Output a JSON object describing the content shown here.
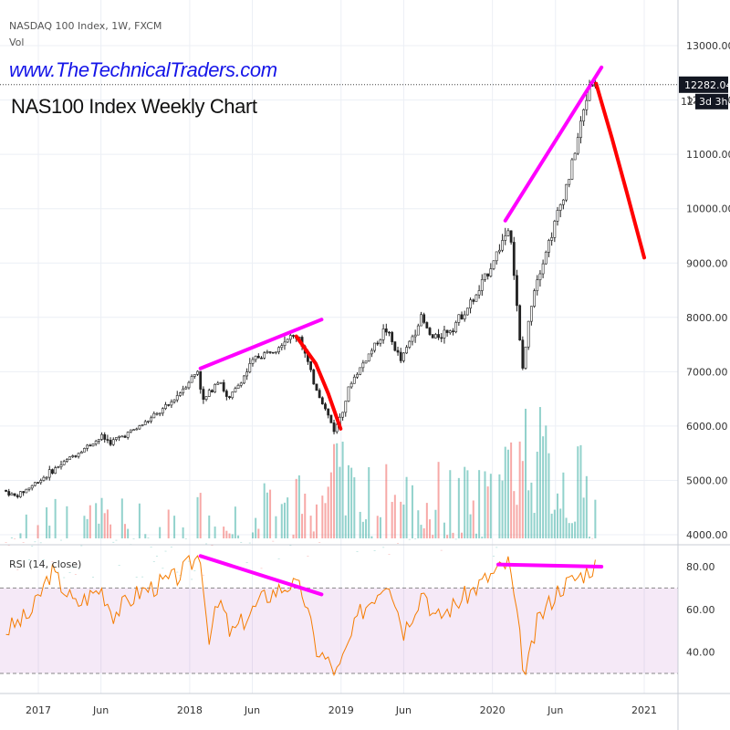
{
  "header": {
    "symbol_line": "NASDAQ 100 Index, 1W, FXCM",
    "vol_label": "Vol",
    "website": "www.TheTechnicalTraders.com",
    "subtitle": "NAS100 Index Weekly Chart",
    "rsi_label": "RSI (14, close)"
  },
  "price_badge": {
    "value": "12282.04",
    "countdown": "3d 3h",
    "hidden_partial": "12"
  },
  "colors": {
    "up": "#26a69a",
    "down": "#ef5350",
    "candle": "#222222",
    "trendline": "#ff00ff",
    "forecast": "#ff0000",
    "rsi_line": "#f57c00",
    "rsi_band": "#9c27b0"
  },
  "chart_data": [
    {
      "type": "candlestick",
      "title": "NAS100 Index Weekly Chart",
      "y_ticks": [
        "13000.00",
        "12000.00",
        "11000.00",
        "10000.00",
        "9000.00",
        "8000.00",
        "7000.00",
        "6000.00",
        "5000.00",
        "4000.00"
      ],
      "x_ticks": [
        "2017",
        "Jun",
        "2018",
        "Jun",
        "2019",
        "Jun",
        "2020",
        "Jun",
        "2021"
      ],
      "last_price": 12282.04,
      "close_path": [
        [
          "2016-10-15",
          4820
        ],
        [
          "2016-11-15",
          4700
        ],
        [
          "2017-01-01",
          4950
        ],
        [
          "2017-04-01",
          5450
        ],
        [
          "2017-06-10",
          5800
        ],
        [
          "2017-07-01",
          5700
        ],
        [
          "2017-09-01",
          5950
        ],
        [
          "2017-11-15",
          6350
        ],
        [
          "2018-01-27",
          7020
        ],
        [
          "2018-02-10",
          6450
        ],
        [
          "2018-03-20",
          6900
        ],
        [
          "2018-04-10",
          6450
        ],
        [
          "2018-06-15",
          7250
        ],
        [
          "2018-07-15",
          7350
        ],
        [
          "2018-08-31",
          7620
        ],
        [
          "2018-10-01",
          7650
        ],
        [
          "2018-10-29",
          6900
        ],
        [
          "2018-12-24",
          5900
        ],
        [
          "2019-02-01",
          6800
        ],
        [
          "2019-04-25",
          7800
        ],
        [
          "2019-06-01",
          7200
        ],
        [
          "2019-07-20",
          8000
        ],
        [
          "2019-08-15",
          7600
        ],
        [
          "2019-10-01",
          7800
        ],
        [
          "2019-12-01",
          8400
        ],
        [
          "2020-02-19",
          9700
        ],
        [
          "2020-03-20",
          7000
        ],
        [
          "2020-04-15",
          8500
        ],
        [
          "2020-06-01",
          9600
        ],
        [
          "2020-07-15",
          10700
        ],
        [
          "2020-09-01",
          12400
        ],
        [
          "2020-09-07",
          12282
        ]
      ],
      "volume_path": [
        [
          "2016-10-15",
          4070
        ],
        [
          "2018-01-15",
          4080
        ],
        [
          "2018-03-01",
          4230
        ],
        [
          "2018-10-01",
          4420
        ],
        [
          "2018-12-15",
          5100
        ],
        [
          "2019-03-01",
          4600
        ],
        [
          "2019-08-01",
          4650
        ],
        [
          "2020-01-01",
          4550
        ],
        [
          "2020-03-15",
          5850
        ],
        [
          "2020-06-01",
          5200
        ],
        [
          "2020-09-07",
          4750
        ]
      ],
      "trendlines": [
        {
          "from": [
            "2018-01-27",
            7060
          ],
          "to": [
            "2018-11-15",
            7960
          ]
        },
        {
          "from": [
            "2020-02-01",
            9780
          ],
          "to": [
            "2020-09-20",
            12600
          ]
        }
      ],
      "forecasts": [
        {
          "points": [
            [
              "2018-09-15",
              7650
            ],
            [
              "2018-11-01",
              7150
            ],
            [
              "2018-12-01",
              6600
            ],
            [
              "2018-12-31",
              5950
            ]
          ]
        },
        {
          "points": [
            [
              "2020-09-07",
              12300
            ],
            [
              "2020-10-15",
              11300
            ],
            [
              "2020-11-20",
              10300
            ],
            [
              "2021-01-01",
              9100
            ]
          ]
        }
      ]
    },
    {
      "type": "line",
      "title": "RSI (14, close)",
      "y_ticks": [
        "80.00",
        "60.00",
        "40.00"
      ],
      "band": [
        30,
        70
      ],
      "rsi_path": [
        [
          "2016-10-15",
          50
        ],
        [
          "2016-12-15",
          58
        ],
        [
          "2017-02-01",
          78
        ],
        [
          "2017-04-01",
          62
        ],
        [
          "2017-06-01",
          70
        ],
        [
          "2017-07-01",
          58
        ],
        [
          "2017-09-01",
          68
        ],
        [
          "2017-12-01",
          75
        ],
        [
          "2018-01-27",
          86
        ],
        [
          "2018-02-15",
          47
        ],
        [
          "2018-03-15",
          64
        ],
        [
          "2018-04-10",
          48
        ],
        [
          "2018-07-01",
          66
        ],
        [
          "2018-08-31",
          72
        ],
        [
          "2018-10-01",
          68
        ],
        [
          "2018-11-01",
          42
        ],
        [
          "2018-12-24",
          30
        ],
        [
          "2019-02-15",
          58
        ],
        [
          "2019-04-25",
          75
        ],
        [
          "2019-06-01",
          50
        ],
        [
          "2019-07-20",
          70
        ],
        [
          "2019-08-15",
          55
        ],
        [
          "2019-10-01",
          62
        ],
        [
          "2019-12-15",
          74
        ],
        [
          "2020-02-10",
          82
        ],
        [
          "2020-03-20",
          28
        ],
        [
          "2020-04-20",
          55
        ],
        [
          "2020-06-10",
          70
        ],
        [
          "2020-08-01",
          76
        ],
        [
          "2020-09-07",
          81
        ]
      ],
      "trendlines": [
        {
          "from": [
            "2018-01-27",
            85
          ],
          "to": [
            "2018-11-15",
            67
          ]
        },
        {
          "from": [
            "2020-01-15",
            81
          ],
          "to": [
            "2020-09-20",
            80
          ]
        }
      ]
    }
  ]
}
